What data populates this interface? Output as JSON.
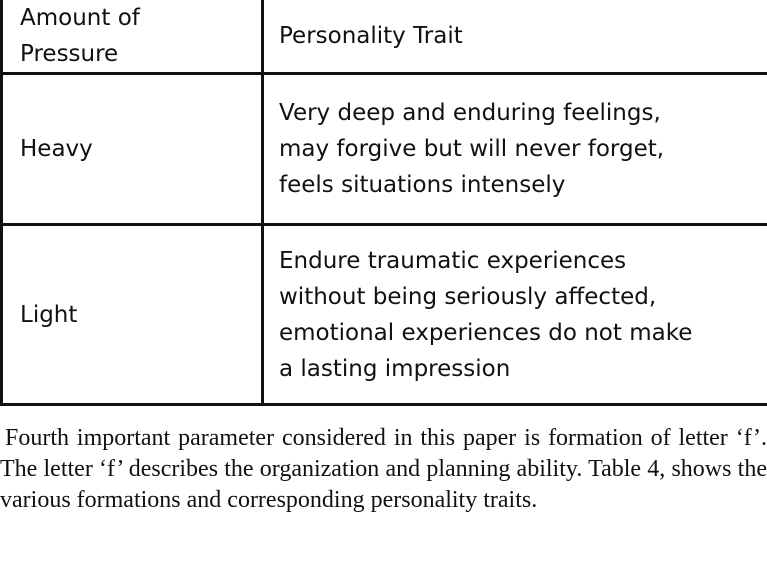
{
  "table": {
    "header": {
      "col1": "Amount of\nPressure",
      "col2": "Personality Trait"
    },
    "rows": [
      {
        "pressure": "Heavy",
        "trait": "Very deep and enduring feelings,\nmay forgive but will never forget,\nfeels situations intensely"
      },
      {
        "pressure": "Light",
        "trait": "Endure traumatic experiences\nwithout being seriously affected,\nemotional experiences do not make\na lasting impression"
      }
    ]
  },
  "paragraph": "Fourth important parameter considered in this paper is formation of letter ‘f’. The letter ‘f’ describes the organization and planning ability. Table 4, shows the various formations and corresponding personality traits."
}
